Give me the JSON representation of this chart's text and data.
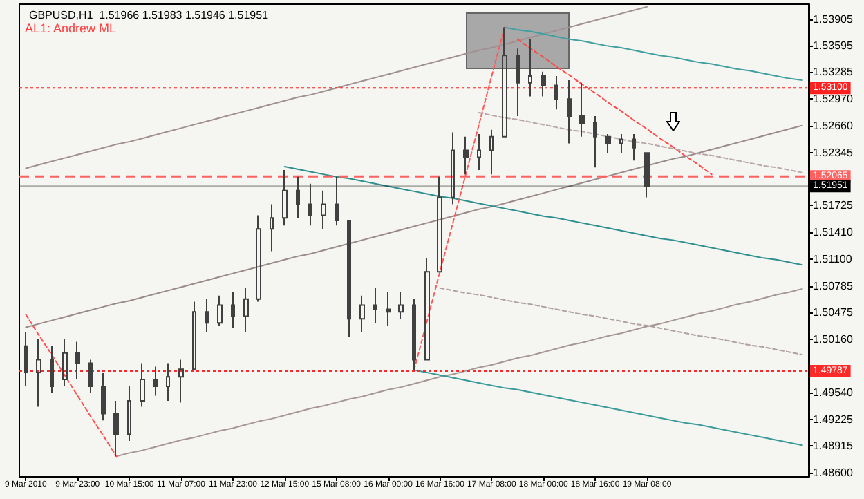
{
  "chart_data": {
    "type": "candlestick",
    "title": "GBPUSD,H1  1.51966 1.51983 1.51946 1.51951",
    "annotations": [
      "AL1: Andrew ML"
    ],
    "categories": [
      "9 Mar 2010",
      null,
      null,
      null,
      "9 Mar 23:00",
      null,
      null,
      null,
      "10 Mar 15:00",
      null,
      null,
      null,
      "11 Mar 07:00",
      null,
      null,
      null,
      "11 Mar 23:00",
      null,
      null,
      null,
      "12 Mar 15:00",
      null,
      null,
      null,
      "15 Mar 08:00",
      null,
      null,
      null,
      "16 Mar 00:00",
      null,
      null,
      null,
      "16 Mar 16:00",
      null,
      null,
      null,
      "17 Mar 08:00",
      null,
      null,
      null,
      "18 Mar 00:00",
      null,
      null,
      null,
      "18 Mar 16:00",
      null,
      null,
      null,
      "19 Mar 08:00",
      null,
      null,
      null,
      null,
      null,
      null,
      null,
      null,
      null,
      null,
      null,
      null
    ],
    "ylim": [
      1.4855,
      1.5408
    ],
    "yticks": [
      {
        "value": 1.53905,
        "label": "1.53905"
      },
      {
        "value": 1.53595,
        "label": "1.53595"
      },
      {
        "value": 1.53285,
        "label": "1.53285"
      },
      {
        "value": 1.5297,
        "label": "1.52970"
      },
      {
        "value": 1.5266,
        "label": "1.52660"
      },
      {
        "value": 1.52345,
        "label": "1.52345"
      },
      {
        "value": 1.51725,
        "label": "1.51725"
      },
      {
        "value": 1.5141,
        "label": "1.51410"
      },
      {
        "value": 1.511,
        "label": "1.51100"
      },
      {
        "value": 1.50785,
        "label": "1.50785"
      },
      {
        "value": 1.50475,
        "label": "1.50475"
      },
      {
        "value": 1.5016,
        "label": "1.50160"
      },
      {
        "value": 1.4954,
        "label": "1.49540"
      },
      {
        "value": 1.49225,
        "label": "1.49225"
      },
      {
        "value": 1.48915,
        "label": "1.48915"
      },
      {
        "value": 1.486,
        "label": "1.48600"
      }
    ],
    "ref_lines": [
      {
        "axis": "y",
        "value": 1.531,
        "label": "1.53100",
        "color": "#ff2020",
        "line_style": "dotted"
      },
      {
        "axis": "y",
        "value": 1.52065,
        "label": "1.52065",
        "color": "#ff6060",
        "line_style": "dashed"
      },
      {
        "axis": "y",
        "value": 1.51951,
        "label": "1.51951",
        "color": "#000000",
        "line_style": "solid"
      },
      {
        "axis": "y",
        "value": 1.49787,
        "label": "1.49787",
        "color": "#ff2828",
        "line_style": "dotted"
      }
    ],
    "series": [
      {
        "color": "#404040",
        "ohlc": [
          [
            1.5008,
            1.5024,
            1.4961,
            1.4977
          ],
          [
            1.4977,
            1.5016,
            1.4937,
            1.4992
          ],
          [
            1.4992,
            1.5008,
            1.4953,
            1.4961
          ],
          [
            1.4969,
            1.5016,
            1.4961,
            1.5
          ],
          [
            1.5,
            1.5013,
            1.4969,
            1.4988
          ],
          [
            1.4988,
            1.4992,
            1.4953,
            1.4961
          ],
          [
            1.4961,
            1.4977,
            1.4921,
            1.4929
          ],
          [
            1.4929,
            1.4944,
            1.4879,
            1.4905
          ],
          [
            1.4905,
            1.4961,
            1.4897,
            1.4944
          ],
          [
            1.4944,
            1.4988,
            1.4937,
            1.4969
          ],
          [
            1.4969,
            1.4984,
            1.495,
            1.4961
          ],
          [
            1.4961,
            1.4988,
            1.4944,
            1.4972
          ],
          [
            1.4972,
            1.4992,
            1.4942,
            1.4981
          ],
          [
            1.4981,
            1.506,
            1.4981,
            1.5048
          ],
          [
            1.5048,
            1.5063,
            1.5024,
            1.5035
          ],
          [
            1.5035,
            1.5067,
            1.5032,
            1.5056
          ],
          [
            1.5056,
            1.5071,
            1.5029,
            1.5043
          ],
          [
            1.5043,
            1.5076,
            1.5024,
            1.5063
          ],
          [
            1.5063,
            1.5161,
            1.506,
            1.5145
          ],
          [
            1.5145,
            1.5174,
            1.5119,
            1.5158
          ],
          [
            1.5158,
            1.5214,
            1.5149,
            1.519
          ],
          [
            1.519,
            1.5206,
            1.5158,
            1.5174
          ],
          [
            1.5174,
            1.5198,
            1.5149,
            1.5161
          ],
          [
            1.5161,
            1.519,
            1.5145,
            1.5174
          ],
          [
            1.5174,
            1.5206,
            1.5149,
            1.5155
          ],
          [
            1.5155,
            1.5155,
            1.5019,
            1.504
          ],
          [
            1.504,
            1.5067,
            1.5024,
            1.5056
          ],
          [
            1.5056,
            1.5076,
            1.5035,
            1.5051
          ],
          [
            1.5051,
            1.5071,
            1.5032,
            1.5048
          ],
          [
            1.5048,
            1.5071,
            1.504,
            1.5056
          ],
          [
            1.5056,
            1.5063,
            1.498,
            1.4992
          ],
          [
            1.4992,
            1.5111,
            1.4992,
            1.5095
          ],
          [
            1.5095,
            1.5206,
            1.5095,
            1.5182
          ],
          [
            1.5182,
            1.5258,
            1.5174,
            1.5237
          ],
          [
            1.5237,
            1.5253,
            1.5209,
            1.5229
          ],
          [
            1.5229,
            1.5256,
            1.5214,
            1.5237
          ],
          [
            1.5237,
            1.5261,
            1.5209,
            1.5253
          ],
          [
            1.5253,
            1.5381,
            1.5253,
            1.5348
          ],
          [
            1.5348,
            1.5356,
            1.5277,
            1.5316
          ],
          [
            1.5316,
            1.5367,
            1.53,
            1.5324
          ],
          [
            1.5324,
            1.5329,
            1.53,
            1.5313
          ],
          [
            1.5313,
            1.5324,
            1.5285,
            1.5297
          ],
          [
            1.5297,
            1.5319,
            1.5245,
            1.5277
          ],
          [
            1.5277,
            1.5316,
            1.5253,
            1.5269
          ],
          [
            1.5269,
            1.5277,
            1.5217,
            1.5253
          ],
          [
            1.5253,
            1.5256,
            1.5234,
            1.5245
          ],
          [
            1.5245,
            1.5256,
            1.5234,
            1.525
          ],
          [
            1.525,
            1.5256,
            1.5225,
            1.524
          ],
          [
            1.5234,
            1.5234,
            1.5182,
            1.5195
          ],
          null,
          null,
          null,
          null,
          null,
          null,
          null,
          null,
          null,
          null,
          null,
          null
        ]
      },
      {
        "type": "line",
        "color": "#a09090",
        "line_style": "solid",
        "values": [
          1.5216,
          1.522,
          1.5224,
          1.5228,
          1.5232,
          1.5236,
          1.524,
          1.5244,
          1.5247,
          1.5251,
          1.5255,
          1.5259,
          1.5263,
          1.5267,
          1.5271,
          1.5275,
          1.5279,
          1.5283,
          1.5287,
          1.5291,
          1.5295,
          1.5299,
          1.5302,
          1.5306,
          1.531,
          1.5314,
          1.5318,
          1.5322,
          1.5326,
          1.533,
          1.5334,
          1.5338,
          1.5342,
          1.5346,
          1.535,
          1.5354,
          1.5357,
          1.5361,
          1.5365,
          1.5369,
          1.5373,
          1.5377,
          1.5381,
          1.5385,
          1.5389,
          1.5393,
          1.5397,
          1.5401,
          1.5405,
          null,
          null,
          null,
          null,
          null,
          null,
          null,
          null,
          null,
          null,
          null,
          null
        ]
      },
      {
        "type": "line",
        "color": "#9a8a8a",
        "line_style": "solid",
        "values": [
          1.503,
          1.5034,
          1.5038,
          1.5042,
          1.5046,
          1.505,
          1.5054,
          1.5058,
          1.5061,
          1.5065,
          1.5069,
          1.5073,
          1.5077,
          1.5081,
          1.5085,
          1.5089,
          1.5093,
          1.5097,
          1.5101,
          1.5105,
          1.5109,
          1.5113,
          1.5116,
          1.512,
          1.5124,
          1.5128,
          1.5132,
          1.5136,
          1.514,
          1.5144,
          1.5148,
          1.5152,
          1.5156,
          1.516,
          1.5164,
          1.5168,
          1.5171,
          1.5175,
          1.5179,
          1.5183,
          1.5187,
          1.5191,
          1.5195,
          1.5199,
          1.5203,
          1.5207,
          1.5211,
          1.5215,
          1.5219,
          1.5223,
          1.5227,
          1.523,
          1.5234,
          1.5238,
          1.5242,
          1.5246,
          1.525,
          1.5254,
          1.5258,
          1.5262,
          1.5266
        ]
      },
      {
        "type": "line",
        "color": "#a69696",
        "line_style": "solid",
        "values": [
          null,
          null,
          null,
          null,
          null,
          null,
          null,
          1.4879,
          1.4883,
          1.4886,
          1.489,
          1.4894,
          1.4898,
          1.4901,
          1.4905,
          1.4909,
          1.4912,
          1.4916,
          1.492,
          1.4923,
          1.4927,
          1.4931,
          1.4935,
          1.4938,
          1.4942,
          1.4946,
          1.4949,
          1.4953,
          1.4957,
          1.496,
          1.4964,
          1.4968,
          1.4972,
          1.4975,
          1.4979,
          1.4983,
          1.4986,
          1.499,
          1.4994,
          1.4997,
          1.5001,
          1.5005,
          1.5009,
          1.5012,
          1.5016,
          1.502,
          1.5023,
          1.5027,
          1.5031,
          1.5034,
          1.5038,
          1.5042,
          1.5046,
          1.5049,
          1.5053,
          1.5057,
          1.506,
          1.5064,
          1.5068,
          1.5071,
          1.5075
        ]
      },
      {
        "type": "line",
        "color": "#ff5050",
        "line_style": "dashed",
        "values": [
          1.5045,
          1.5021,
          1.4998,
          1.4974,
          1.495,
          1.4926,
          1.4903,
          1.4879,
          null,
          null,
          null,
          null,
          null,
          null,
          null,
          null,
          null,
          null,
          null,
          null,
          null,
          null,
          null,
          null,
          null,
          null,
          null,
          null,
          null,
          null,
          null,
          null,
          null,
          null,
          null,
          null,
          null,
          null,
          null,
          null,
          null,
          null,
          null,
          null,
          null,
          null,
          null,
          null,
          null,
          null,
          null,
          null,
          null,
          null,
          null,
          null,
          null,
          null,
          null,
          null,
          null
        ]
      },
      {
        "type": "line",
        "color": "#2f8f8f",
        "line_style": "solid",
        "values": [
          null,
          null,
          null,
          null,
          null,
          null,
          null,
          null,
          null,
          null,
          null,
          null,
          null,
          null,
          null,
          null,
          null,
          null,
          null,
          null,
          1.5218,
          1.5215,
          1.5212,
          1.5209,
          1.5206,
          1.5204,
          1.5201,
          1.5198,
          1.5195,
          1.5192,
          1.5189,
          1.5186,
          1.5183,
          1.5181,
          1.5178,
          1.5175,
          1.5172,
          1.5169,
          1.5166,
          1.5163,
          1.516,
          1.5158,
          1.5155,
          1.5152,
          1.5149,
          1.5146,
          1.5143,
          1.514,
          1.5137,
          1.5134,
          1.5132,
          1.5129,
          1.5126,
          1.5123,
          1.512,
          1.5117,
          1.5114,
          1.5111,
          1.5109,
          1.5106,
          1.5103
        ]
      },
      {
        "type": "line",
        "color": "#40a0a0",
        "line_style": "solid",
        "values": [
          null,
          null,
          null,
          null,
          null,
          null,
          null,
          null,
          null,
          null,
          null,
          null,
          null,
          null,
          null,
          null,
          null,
          null,
          null,
          null,
          null,
          null,
          null,
          null,
          null,
          null,
          null,
          null,
          null,
          null,
          null,
          null,
          null,
          null,
          null,
          null,
          null,
          1.5381,
          1.5378,
          1.5376,
          1.5373,
          1.537,
          1.5367,
          1.5365,
          1.5362,
          1.5359,
          1.5357,
          1.5354,
          1.5351,
          1.5348,
          1.5346,
          1.5343,
          1.534,
          1.5338,
          1.5335,
          1.5332,
          1.533,
          1.5327,
          1.5324,
          1.5321,
          1.5319
        ]
      },
      {
        "type": "line",
        "color": "#3a9a9a",
        "line_style": "solid",
        "values": [
          null,
          null,
          null,
          null,
          null,
          null,
          null,
          null,
          null,
          null,
          null,
          null,
          null,
          null,
          null,
          null,
          null,
          null,
          null,
          null,
          null,
          null,
          null,
          null,
          null,
          null,
          null,
          null,
          null,
          null,
          1.498,
          1.4977,
          1.4974,
          1.4971,
          1.4968,
          1.4965,
          1.4962,
          1.4959,
          1.4957,
          1.4954,
          1.4951,
          1.4948,
          1.4945,
          1.4942,
          1.4939,
          1.4936,
          1.4933,
          1.493,
          1.4927,
          1.4924,
          1.4921,
          1.4918,
          1.4916,
          1.4913,
          1.491,
          1.4907,
          1.4904,
          1.4901,
          1.4898,
          1.4895,
          1.4892
        ]
      },
      {
        "type": "line",
        "color": "#ff5858",
        "line_style": "dashed",
        "values": [
          null,
          null,
          null,
          null,
          null,
          null,
          null,
          null,
          null,
          null,
          null,
          null,
          null,
          null,
          null,
          null,
          null,
          null,
          null,
          null,
          null,
          null,
          null,
          null,
          null,
          null,
          null,
          null,
          null,
          null,
          1.498,
          1.5037,
          1.5095,
          1.5152,
          1.5209,
          1.5266,
          1.5324,
          1.5381,
          null,
          null,
          null,
          null,
          null,
          null,
          null,
          null,
          null,
          null,
          null,
          null,
          null,
          null,
          null,
          null,
          null,
          null,
          null,
          null,
          null,
          null,
          null
        ]
      },
      {
        "type": "line",
        "color": "#ff4848",
        "line_style": "dashed",
        "values": [
          null,
          null,
          null,
          null,
          null,
          null,
          null,
          null,
          null,
          null,
          null,
          null,
          null,
          null,
          null,
          null,
          null,
          null,
          null,
          null,
          null,
          null,
          null,
          null,
          null,
          null,
          null,
          null,
          null,
          null,
          null,
          null,
          null,
          null,
          null,
          null,
          null,
          null,
          1.5367,
          1.5356,
          1.5346,
          1.5335,
          1.5325,
          1.5314,
          1.5304,
          1.5293,
          1.5283,
          1.5272,
          1.5262,
          1.5251,
          1.5241,
          1.523,
          1.522,
          1.5209,
          null,
          null,
          null,
          null,
          null,
          null,
          null
        ]
      },
      {
        "type": "line",
        "color": "#b0a0a0",
        "line_style": "dashed",
        "values": [
          null,
          null,
          null,
          null,
          null,
          null,
          null,
          null,
          null,
          null,
          null,
          null,
          null,
          null,
          null,
          null,
          null,
          null,
          null,
          null,
          null,
          null,
          null,
          null,
          null,
          null,
          null,
          null,
          null,
          null,
          null,
          null,
          1.5076,
          1.5073,
          1.507,
          1.5068,
          1.5065,
          1.5062,
          1.5059,
          1.5057,
          1.5054,
          1.5051,
          1.5048,
          1.5045,
          1.5043,
          1.504,
          1.5037,
          1.5034,
          1.5032,
          1.5029,
          1.5026,
          1.5023,
          1.502,
          1.5018,
          1.5015,
          1.5012,
          1.5009,
          1.5007,
          1.5004,
          1.5001,
          1.4998
        ]
      },
      {
        "type": "line",
        "color": "#b8a8a8",
        "line_style": "dashed",
        "values": [
          null,
          null,
          null,
          null,
          null,
          null,
          null,
          null,
          null,
          null,
          null,
          null,
          null,
          null,
          null,
          null,
          null,
          null,
          null,
          null,
          null,
          null,
          null,
          null,
          null,
          null,
          null,
          null,
          null,
          null,
          null,
          null,
          null,
          null,
          null,
          1.5281,
          1.5278,
          1.5275,
          1.5273,
          1.527,
          1.5267,
          1.5264,
          1.5261,
          1.5259,
          1.5256,
          1.5253,
          1.525,
          1.5247,
          1.5245,
          1.5242,
          1.5239,
          1.5236,
          1.5233,
          1.5231,
          1.5228,
          1.5225,
          1.5222,
          1.5219,
          1.5217,
          1.5214,
          1.5211
        ]
      }
    ]
  }
}
